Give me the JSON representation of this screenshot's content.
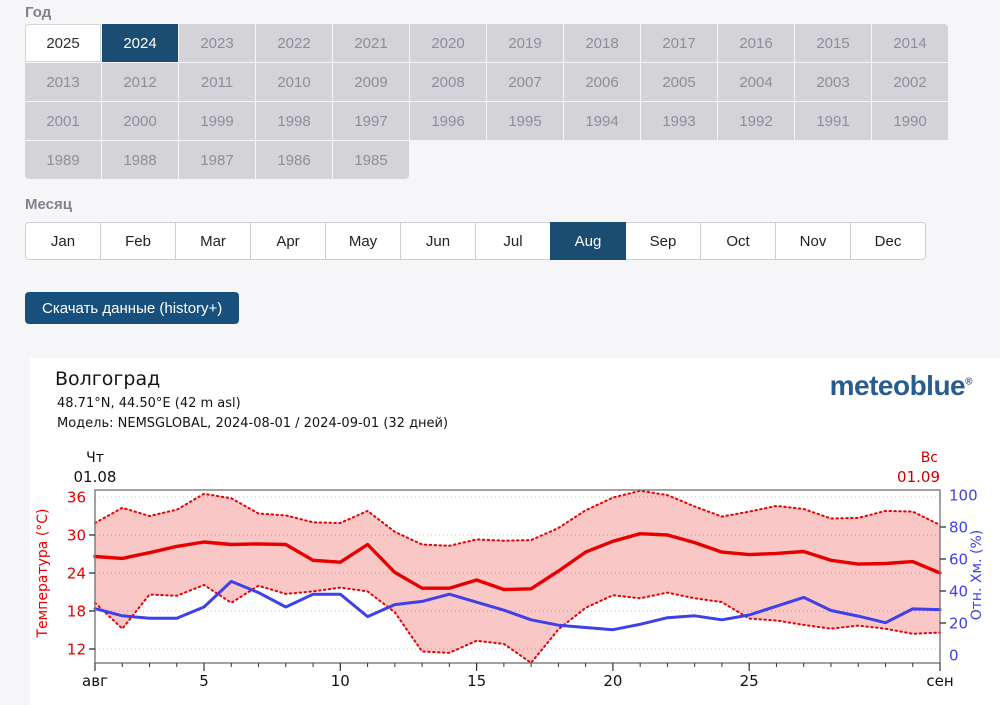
{
  "labels": {
    "year_section": "Год",
    "month_section": "Месяц"
  },
  "year_selector": {
    "years": [
      "2025",
      "2024",
      "2023",
      "2022",
      "2021",
      "2020",
      "2019",
      "2018",
      "2017",
      "2016",
      "2015",
      "2014",
      "2013",
      "2012",
      "2011",
      "2010",
      "2009",
      "2008",
      "2007",
      "2006",
      "2005",
      "2004",
      "2003",
      "2002",
      "2001",
      "2000",
      "1999",
      "1998",
      "1997",
      "1996",
      "1995",
      "1994",
      "1993",
      "1992",
      "1991",
      "1990",
      "1989",
      "1988",
      "1987",
      "1986",
      "1985"
    ],
    "selected": "2024",
    "highlighted": "2025"
  },
  "month_selector": {
    "months": [
      "Jan",
      "Feb",
      "Mar",
      "Apr",
      "May",
      "Jun",
      "Jul",
      "Aug",
      "Sep",
      "Oct",
      "Nov",
      "Dec"
    ],
    "selected": "Aug"
  },
  "download_button": {
    "label": "Скачать данные (history+)"
  },
  "chart": {
    "header": {
      "title": "Волгоград",
      "coordinates": "48.71°N, 44.50°E (42 m asl)",
      "model": "Модель: NEMSGLOBAL, 2024-08-01 / 2024-09-01 (32 дней)",
      "logo": "meteoblue",
      "logo_mark": "®"
    }
  },
  "colors": {
    "accent_navy": "#1b4c72",
    "button_navy": "#17507c",
    "logo_blue": "#2b5d8c",
    "chart_red": "#e60000",
    "chart_blue": "#4040e8",
    "band_fill": "rgba(230,0,0,0.22)",
    "grid_gray": "#bcbcbc"
  },
  "chart_data": {
    "type": "line",
    "title": "Волгоград",
    "subtitle": "48.71°N, 44.50°E (42 m asl)",
    "model_line": "Модель: NEMSGLOBAL, 2024-08-01 / 2024-09-01 (32 дней)",
    "days": 32,
    "x_axis": {
      "labeled_ticks": [
        {
          "day": 1,
          "label": "авг"
        },
        {
          "day": 5,
          "label": "5"
        },
        {
          "day": 10,
          "label": "10"
        },
        {
          "day": 15,
          "label": "15"
        },
        {
          "day": 20,
          "label": "20"
        },
        {
          "day": 25,
          "label": "25"
        },
        {
          "day": 32,
          "label": "сен"
        }
      ],
      "minor_tick_every_day": true
    },
    "y_left": {
      "label": "Температура (°C)",
      "ticks": [
        36,
        30,
        24,
        18,
        12
      ],
      "range": [
        9.8,
        37.1
      ],
      "color": "#e60000"
    },
    "y_right": {
      "label": "Отн. Хм. (%)",
      "ticks": [
        100,
        80,
        60,
        40,
        20,
        0
      ],
      "range": [
        0,
        104
      ],
      "color": "#4040e8"
    },
    "date_markers": {
      "start": {
        "dow": "Чт",
        "date": "01.08",
        "color": "#111111"
      },
      "end": {
        "dow": "Вс",
        "date": "01.09",
        "color": "#cc0000"
      }
    },
    "grid": true,
    "legend_position": "none",
    "series": [
      {
        "name": "temperature-max",
        "unit": "°C",
        "style": "dotted",
        "color": "#e60000",
        "axis": "left",
        "values": [
          31.9,
          34.3,
          33.0,
          34.0,
          36.5,
          35.8,
          33.4,
          33.1,
          32.0,
          31.9,
          33.8,
          30.5,
          28.5,
          28.3,
          29.3,
          29.1,
          29.2,
          31.1,
          33.9,
          35.9,
          37.0,
          36.3,
          34.5,
          32.9,
          33.7,
          34.6,
          34.1,
          32.6,
          32.7,
          33.8,
          33.7,
          31.6
        ]
      },
      {
        "name": "temperature-mean",
        "unit": "°C",
        "style": "solid",
        "color": "#e60000",
        "axis": "left",
        "values": [
          26.6,
          26.3,
          27.2,
          28.2,
          28.9,
          28.5,
          28.6,
          28.5,
          26.0,
          25.7,
          28.5,
          24.1,
          21.6,
          21.6,
          22.9,
          21.4,
          21.5,
          24.3,
          27.3,
          29.0,
          30.2,
          30.0,
          28.8,
          27.3,
          26.9,
          27.1,
          27.4,
          26.0,
          25.4,
          25.5,
          25.8,
          24.0
        ]
      },
      {
        "name": "temperature-min",
        "unit": "°C",
        "style": "dotted",
        "color": "#e60000",
        "axis": "left",
        "values": [
          19.3,
          15.2,
          20.6,
          20.4,
          22.1,
          19.3,
          22.0,
          20.7,
          21.1,
          21.7,
          21.1,
          17.8,
          11.6,
          11.4,
          13.3,
          12.8,
          9.8,
          15.1,
          18.5,
          20.5,
          20.0,
          20.9,
          20.0,
          19.4,
          16.8,
          16.5,
          15.8,
          15.2,
          15.7,
          15.2,
          14.4,
          14.6
        ]
      },
      {
        "name": "relative-humidity",
        "unit": "%",
        "style": "solid",
        "color": "#4040e8",
        "axis": "right",
        "values": [
          29,
          24.5,
          23,
          23,
          30,
          46,
          39,
          30,
          38,
          38,
          24,
          31.5,
          33.5,
          38,
          33,
          28,
          22,
          18.6,
          17.2,
          15.8,
          19.2,
          23.3,
          24.5,
          22,
          25,
          30.5,
          36,
          27.8,
          24.3,
          20.2,
          28.8,
          28.4
        ]
      }
    ]
  }
}
